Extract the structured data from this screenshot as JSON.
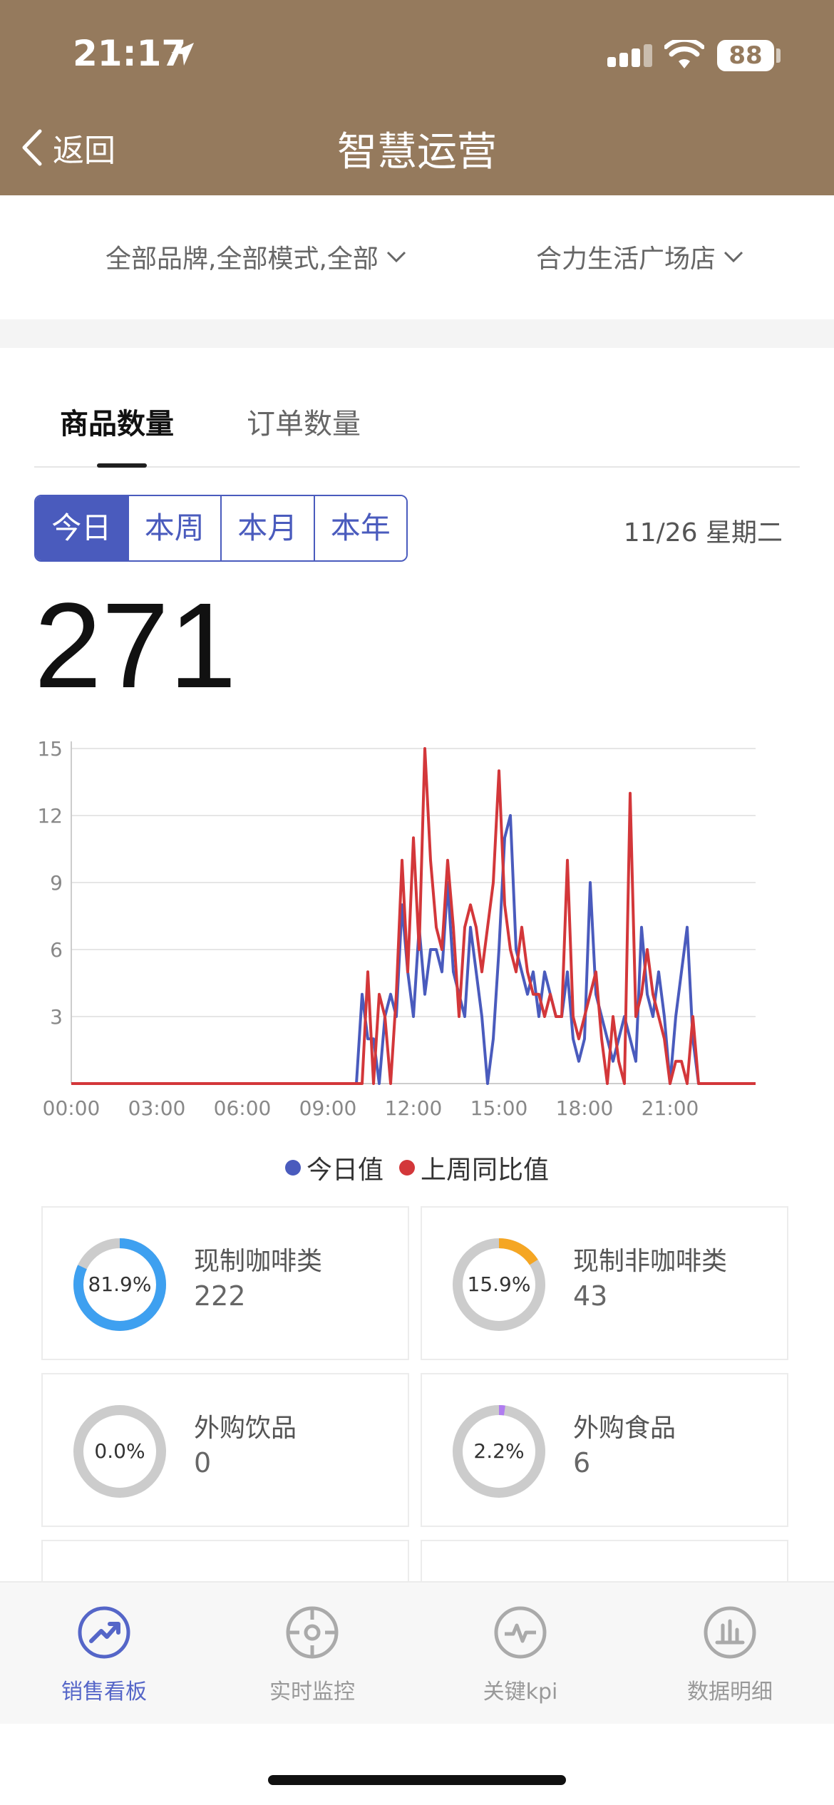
{
  "status_bar": {
    "time": "21:17",
    "battery": "88"
  },
  "nav": {
    "back_label": "返回",
    "title": "智慧运营"
  },
  "filters": {
    "brand_mode": "全部品牌,全部模式,全部",
    "store": "合力生活广场店"
  },
  "tabs": [
    {
      "label": "商品数量",
      "active": true
    },
    {
      "label": "订单数量",
      "active": false
    }
  ],
  "periods": [
    {
      "label": "今日",
      "active": true
    },
    {
      "label": "本周",
      "active": false
    },
    {
      "label": "本月",
      "active": false
    },
    {
      "label": "本年",
      "active": false
    }
  ],
  "date_label": "11/26 星期二",
  "total": "271",
  "colors": {
    "header": "#957a5d",
    "accent": "#4a5bbd",
    "today_series": "#4a5bbd",
    "last_week_series": "#d3373a",
    "coffee": "#3ea0f0",
    "non_coffee": "#f5a623",
    "food": "#b07cf0",
    "track": "#cccccc"
  },
  "chart_data": {
    "type": "line",
    "ylim": [
      0,
      15
    ],
    "y_ticks": [
      15,
      12,
      9,
      6,
      3
    ],
    "x_ticks": [
      "00:00",
      "03:00",
      "06:00",
      "09:00",
      "12:00",
      "15:00",
      "18:00",
      "21:00"
    ],
    "x_range_hours": [
      0,
      24
    ],
    "grid": true,
    "legend_position": "bottom",
    "series": [
      {
        "name": "今日值",
        "color": "#4a5bbd",
        "points": [
          [
            0,
            0
          ],
          [
            10,
            0
          ],
          [
            10.2,
            4
          ],
          [
            10.4,
            2
          ],
          [
            10.6,
            2
          ],
          [
            10.8,
            0
          ],
          [
            11,
            3
          ],
          [
            11.2,
            4
          ],
          [
            11.4,
            3
          ],
          [
            11.6,
            8
          ],
          [
            11.8,
            5
          ],
          [
            12,
            3
          ],
          [
            12.2,
            7
          ],
          [
            12.4,
            4
          ],
          [
            12.6,
            6
          ],
          [
            12.8,
            6
          ],
          [
            13,
            5
          ],
          [
            13.2,
            9
          ],
          [
            13.4,
            5
          ],
          [
            13.6,
            4
          ],
          [
            13.8,
            3
          ],
          [
            14,
            7
          ],
          [
            14.2,
            5
          ],
          [
            14.4,
            3
          ],
          [
            14.6,
            0
          ],
          [
            14.8,
            2
          ],
          [
            15,
            6
          ],
          [
            15.2,
            11
          ],
          [
            15.4,
            12
          ],
          [
            15.6,
            6
          ],
          [
            15.8,
            5
          ],
          [
            16,
            4
          ],
          [
            16.2,
            5
          ],
          [
            16.4,
            3
          ],
          [
            16.6,
            5
          ],
          [
            16.8,
            4
          ],
          [
            17,
            3
          ],
          [
            17.2,
            3
          ],
          [
            17.4,
            5
          ],
          [
            17.6,
            2
          ],
          [
            17.8,
            1
          ],
          [
            18,
            2
          ],
          [
            18.2,
            9
          ],
          [
            18.4,
            4
          ],
          [
            18.6,
            3
          ],
          [
            18.8,
            2
          ],
          [
            19,
            1
          ],
          [
            19.2,
            2
          ],
          [
            19.4,
            3
          ],
          [
            19.6,
            2
          ],
          [
            19.8,
            1
          ],
          [
            20,
            7
          ],
          [
            20.2,
            4
          ],
          [
            20.4,
            3
          ],
          [
            20.6,
            5
          ],
          [
            20.8,
            3
          ],
          [
            21,
            0
          ],
          [
            21.2,
            3
          ],
          [
            21.4,
            5
          ],
          [
            21.6,
            7
          ],
          [
            21.8,
            2
          ],
          [
            22,
            0
          ],
          [
            24,
            0
          ]
        ]
      },
      {
        "name": "上周同比值",
        "color": "#d3373a",
        "points": [
          [
            0,
            0
          ],
          [
            10,
            0
          ],
          [
            10.2,
            0
          ],
          [
            10.4,
            5
          ],
          [
            10.6,
            0
          ],
          [
            10.8,
            4
          ],
          [
            11,
            3
          ],
          [
            11.2,
            0
          ],
          [
            11.4,
            4
          ],
          [
            11.6,
            10
          ],
          [
            11.8,
            5
          ],
          [
            12,
            11
          ],
          [
            12.2,
            6
          ],
          [
            12.4,
            15
          ],
          [
            12.6,
            10
          ],
          [
            12.8,
            7
          ],
          [
            13,
            6
          ],
          [
            13.2,
            10
          ],
          [
            13.4,
            7
          ],
          [
            13.6,
            3
          ],
          [
            13.8,
            7
          ],
          [
            14,
            8
          ],
          [
            14.2,
            7
          ],
          [
            14.4,
            5
          ],
          [
            14.6,
            7
          ],
          [
            14.8,
            9
          ],
          [
            15,
            14
          ],
          [
            15.2,
            8
          ],
          [
            15.4,
            6
          ],
          [
            15.6,
            5
          ],
          [
            15.8,
            7
          ],
          [
            16,
            5
          ],
          [
            16.2,
            4
          ],
          [
            16.4,
            4
          ],
          [
            16.6,
            3
          ],
          [
            16.8,
            4
          ],
          [
            17,
            3
          ],
          [
            17.2,
            3
          ],
          [
            17.4,
            10
          ],
          [
            17.6,
            3
          ],
          [
            17.8,
            2
          ],
          [
            18,
            3
          ],
          [
            18.2,
            4
          ],
          [
            18.4,
            5
          ],
          [
            18.6,
            2
          ],
          [
            18.8,
            0
          ],
          [
            19,
            3
          ],
          [
            19.2,
            1
          ],
          [
            19.4,
            0
          ],
          [
            19.6,
            13
          ],
          [
            19.8,
            3
          ],
          [
            20,
            4
          ],
          [
            20.2,
            6
          ],
          [
            20.4,
            4
          ],
          [
            20.6,
            3
          ],
          [
            20.8,
            2
          ],
          [
            21,
            0
          ],
          [
            21.2,
            1
          ],
          [
            21.4,
            1
          ],
          [
            21.6,
            0
          ],
          [
            21.8,
            3
          ],
          [
            22,
            0
          ],
          [
            24,
            0
          ]
        ]
      }
    ]
  },
  "categories": [
    {
      "name": "现制咖啡类",
      "value": "222",
      "percent": "81.9%",
      "fraction": 0.819,
      "color": "#3ea0f0"
    },
    {
      "name": "现制非咖啡类",
      "value": "43",
      "percent": "15.9%",
      "fraction": 0.159,
      "color": "#f5a623"
    },
    {
      "name": "外购饮品",
      "value": "0",
      "percent": "0.0%",
      "fraction": 0.0,
      "color": "#3ea0f0"
    },
    {
      "name": "外购食品",
      "value": "6",
      "percent": "2.2%",
      "fraction": 0.022,
      "color": "#b07cf0"
    }
  ],
  "tabbar": [
    {
      "label": "销售看板",
      "icon": "trend-up-icon",
      "active": true
    },
    {
      "label": "实时监控",
      "icon": "crosshair-icon",
      "active": false
    },
    {
      "label": "关键kpi",
      "icon": "pulse-icon",
      "active": false
    },
    {
      "label": "数据明细",
      "icon": "bar-chart-icon",
      "active": false
    }
  ]
}
